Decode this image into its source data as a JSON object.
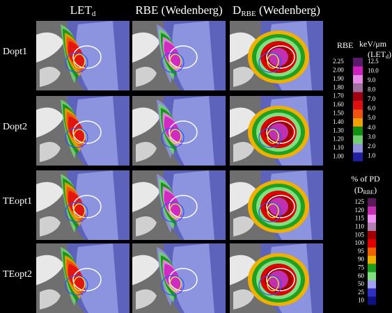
{
  "columns": [
    {
      "main": "LET",
      "sub": "d",
      "rest": ""
    },
    {
      "main": "RBE (Wedenberg)",
      "sub": "",
      "rest": ""
    },
    {
      "main": "D",
      "sub": "RBE",
      "rest": " (Wedenberg)"
    }
  ],
  "rows": [
    "Dopt1",
    "Dopt2",
    "TEopt1",
    "TEopt2"
  ],
  "rbe_scale": {
    "title": "RBE",
    "ticks": [
      "2.25",
      "2.00",
      "1.90",
      "1.80",
      "1.70",
      "1.60",
      "1.50",
      "1.40",
      "1.30",
      "1.20",
      "1.10",
      "1.00"
    ],
    "colors": [
      "#5a1a6a",
      "#d020c0",
      "#e888e8",
      "#a070a0",
      "#a00010",
      "#e01010",
      "#f05010",
      "#f0a000",
      "#109010",
      "#70d070",
      "#9090e0",
      "#2020a0"
    ]
  },
  "let_scale": {
    "title": "keV/μm",
    "subtitle_main": "(LET",
    "subtitle_sub": "d",
    "subtitle_end": ")",
    "ticks": [
      "12.5",
      "10.0",
      "9.0",
      "8.0",
      "7.0",
      "6.0",
      "5.0",
      "4.0",
      "3.0",
      "2.0",
      "1.0"
    ]
  },
  "pd_scale": {
    "title": "% of PD",
    "subtitle_main": "(D",
    "subtitle_sub": "RBE",
    "subtitle_end": ")",
    "ticks": [
      "125",
      "120",
      "115",
      "110",
      "105",
      "100",
      "95",
      "90",
      "75",
      "60",
      "50",
      "25",
      "10"
    ],
    "colors": [
      "#5a1a5a",
      "#c030b0",
      "#f090f0",
      "#b080b0",
      "#a00000",
      "#e00000",
      "#f06000",
      "#f0b000",
      "#20a020",
      "#80e080",
      "#a0a0f0",
      "#3030c0",
      "#101080"
    ]
  }
}
